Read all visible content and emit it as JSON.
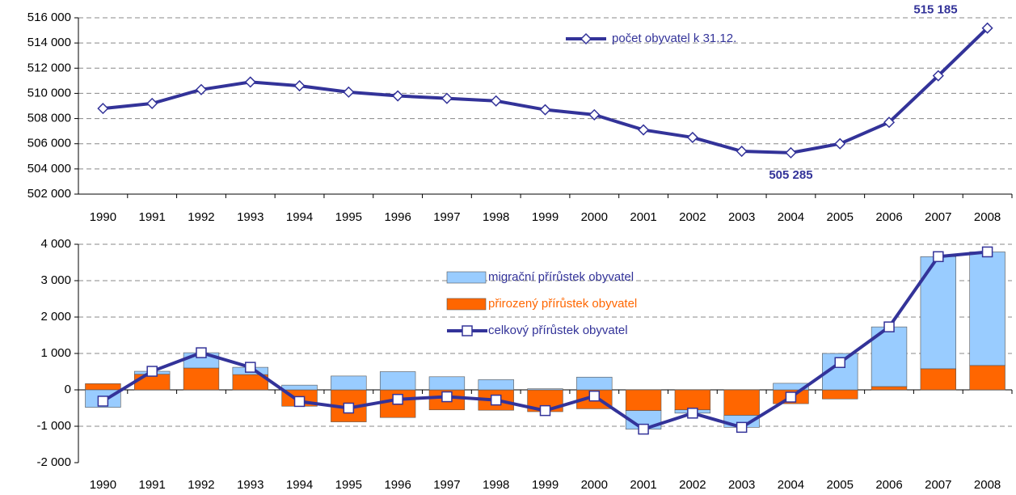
{
  "chart_data": [
    {
      "type": "line",
      "categories": [
        "1990",
        "1991",
        "1992",
        "1993",
        "1994",
        "1995",
        "1996",
        "1997",
        "1998",
        "1999",
        "2000",
        "2001",
        "2002",
        "2003",
        "2004",
        "2005",
        "2006",
        "2007",
        "2008"
      ],
      "series": [
        {
          "name": "počet obyvatel k 31.12.",
          "color": "#333399",
          "values": [
            508800,
            509200,
            510300,
            510900,
            510600,
            510100,
            509800,
            509600,
            509400,
            508700,
            508300,
            507100,
            506500,
            505400,
            505285,
            506000,
            507700,
            511400,
            515185
          ],
          "value_labels": [
            null,
            null,
            null,
            null,
            null,
            null,
            null,
            null,
            null,
            null,
            null,
            null,
            null,
            null,
            "505 285",
            null,
            null,
            null,
            "515 185"
          ]
        }
      ],
      "ylim": [
        502000,
        516000
      ],
      "yticks": [
        {
          "value": 502000,
          "label": "502 000"
        },
        {
          "value": 504000,
          "label": "504 000"
        },
        {
          "value": 506000,
          "label": "506 000"
        },
        {
          "value": 508000,
          "label": "508 000"
        },
        {
          "value": 510000,
          "label": "510 000"
        },
        {
          "value": 512000,
          "label": "512 000"
        },
        {
          "value": 514000,
          "label": "514 000"
        },
        {
          "value": 516000,
          "label": "516 000"
        }
      ],
      "grid": true,
      "legend": "top"
    },
    {
      "type": "bar",
      "stacked": true,
      "categories": [
        "1990",
        "1991",
        "1992",
        "1993",
        "1994",
        "1995",
        "1996",
        "1997",
        "1998",
        "1999",
        "2000",
        "2001",
        "2002",
        "2003",
        "2004",
        "2005",
        "2006",
        "2007",
        "2008"
      ],
      "series": [
        {
          "name": "migrační přírůstek obyvatel",
          "color": "#99ccff",
          "values": [
            -480,
            80,
            420,
            200,
            130,
            380,
            500,
            360,
            280,
            30,
            350,
            -510,
            -90,
            -330,
            180,
            1000,
            1640,
            3080,
            3120
          ]
        },
        {
          "name": "přirozený přírůstek obyvatel",
          "color": "#ff6600",
          "values": [
            170,
            430,
            600,
            420,
            -450,
            -880,
            -760,
            -550,
            -560,
            -600,
            -520,
            -570,
            -550,
            -700,
            -380,
            -250,
            90,
            580,
            670
          ]
        },
        {
          "name": "celkový přírůstek obyvatel",
          "color": "#333399",
          "type": "line",
          "values": [
            -310,
            510,
            1020,
            620,
            -320,
            -500,
            -260,
            -190,
            -280,
            -570,
            -170,
            -1080,
            -640,
            -1030,
            -200,
            750,
            1730,
            3660,
            3790
          ]
        }
      ],
      "ylim": [
        -2000,
        4000
      ],
      "yticks": [
        {
          "value": -2000,
          "label": "-2 000"
        },
        {
          "value": -1000,
          "label": "-1 000"
        },
        0,
        {
          "value": 1000,
          "label": "1 000"
        },
        {
          "value": 2000,
          "label": "2 000"
        },
        {
          "value": 3000,
          "label": "3 000"
        },
        {
          "value": 4000,
          "label": "4 000"
        }
      ],
      "grid": true,
      "legend": "center"
    }
  ]
}
